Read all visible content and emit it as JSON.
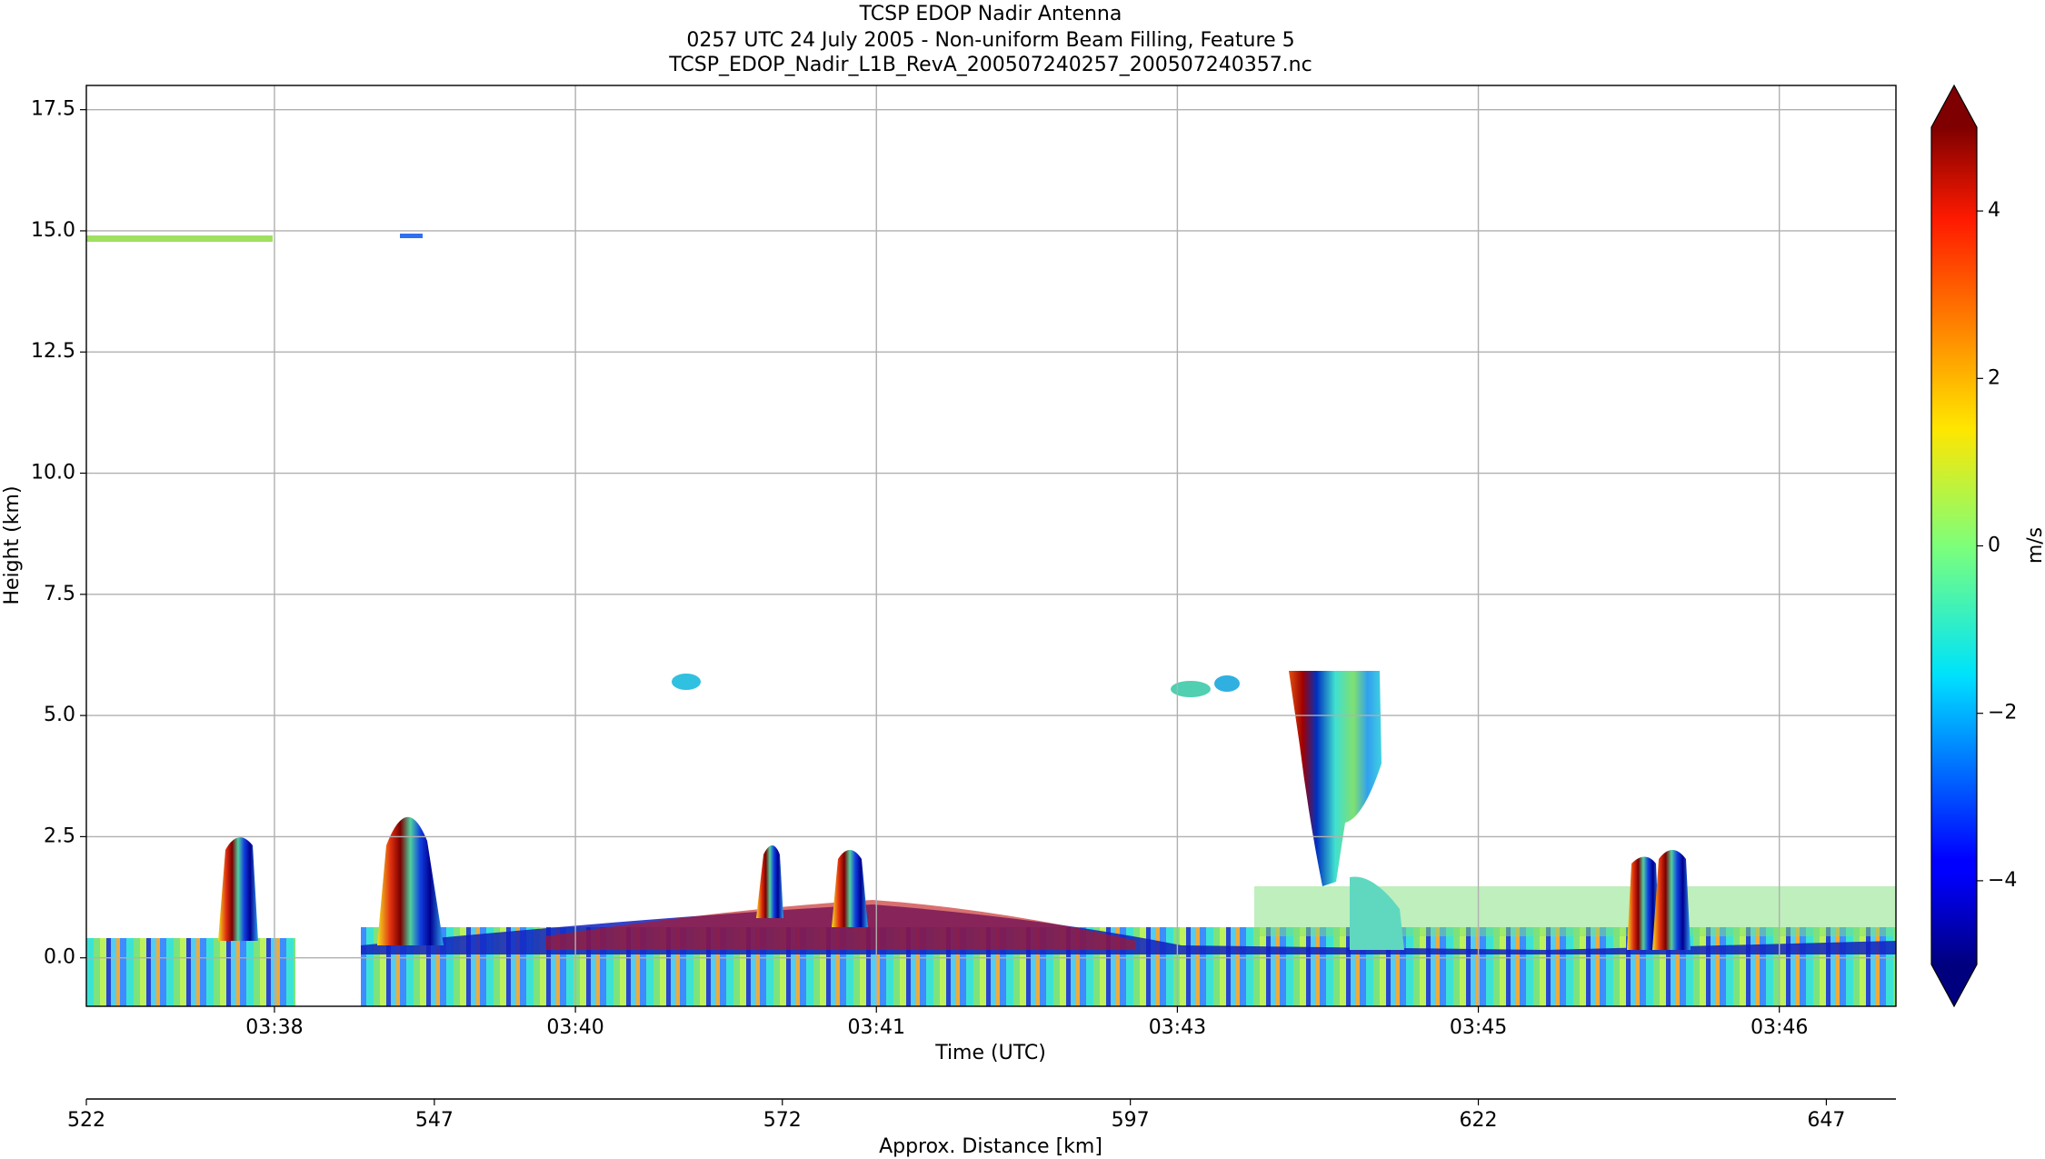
{
  "chart_data": {
    "type": "heatmap",
    "title": "TCSP EDOP Nadir Antenna",
    "subtitle": "0257 UTC 24 July 2005 - Non-uniform Beam Filling, Feature 5",
    "source_file": "TCSP_EDOP_Nadir_L1B_RevA_200507240257_200507240357.nc",
    "x_label": "Time (UTC)",
    "y_label": "Height (km)",
    "xlim": [
      37.7,
      47.32
    ],
    "xticks": [
      {
        "value": 38.7,
        "label": "03:38"
      },
      {
        "value": 40.3,
        "label": "03:40"
      },
      {
        "value": 41.9,
        "label": "03:41"
      },
      {
        "value": 43.5,
        "label": "03:43"
      },
      {
        "value": 45.1,
        "label": "03:45"
      },
      {
        "value": 46.7,
        "label": "03:46"
      }
    ],
    "ylim": [
      -1,
      18
    ],
    "yticks": [
      {
        "value": 0,
        "label": "0.0"
      },
      2.5,
      {
        "value": 5,
        "label": "5.0"
      },
      7.5,
      {
        "value": 10,
        "label": "10.0"
      },
      12.5,
      {
        "value": 15,
        "label": "15.0"
      },
      17.5
    ],
    "grid": true,
    "colorbar": {
      "label": "m/s",
      "colormap": "jet",
      "extend": "both",
      "clim": [
        -5,
        5
      ],
      "ticks": [
        {
          "value": -4,
          "label": "−4"
        },
        {
          "value": -2,
          "label": "−2"
        },
        0,
        2,
        4
      ]
    },
    "secondary_x": {
      "label": "Approx. Distance [km]",
      "xlim": [
        522,
        652
      ],
      "xticks": [
        522,
        547,
        572,
        597,
        622,
        647
      ]
    }
  }
}
